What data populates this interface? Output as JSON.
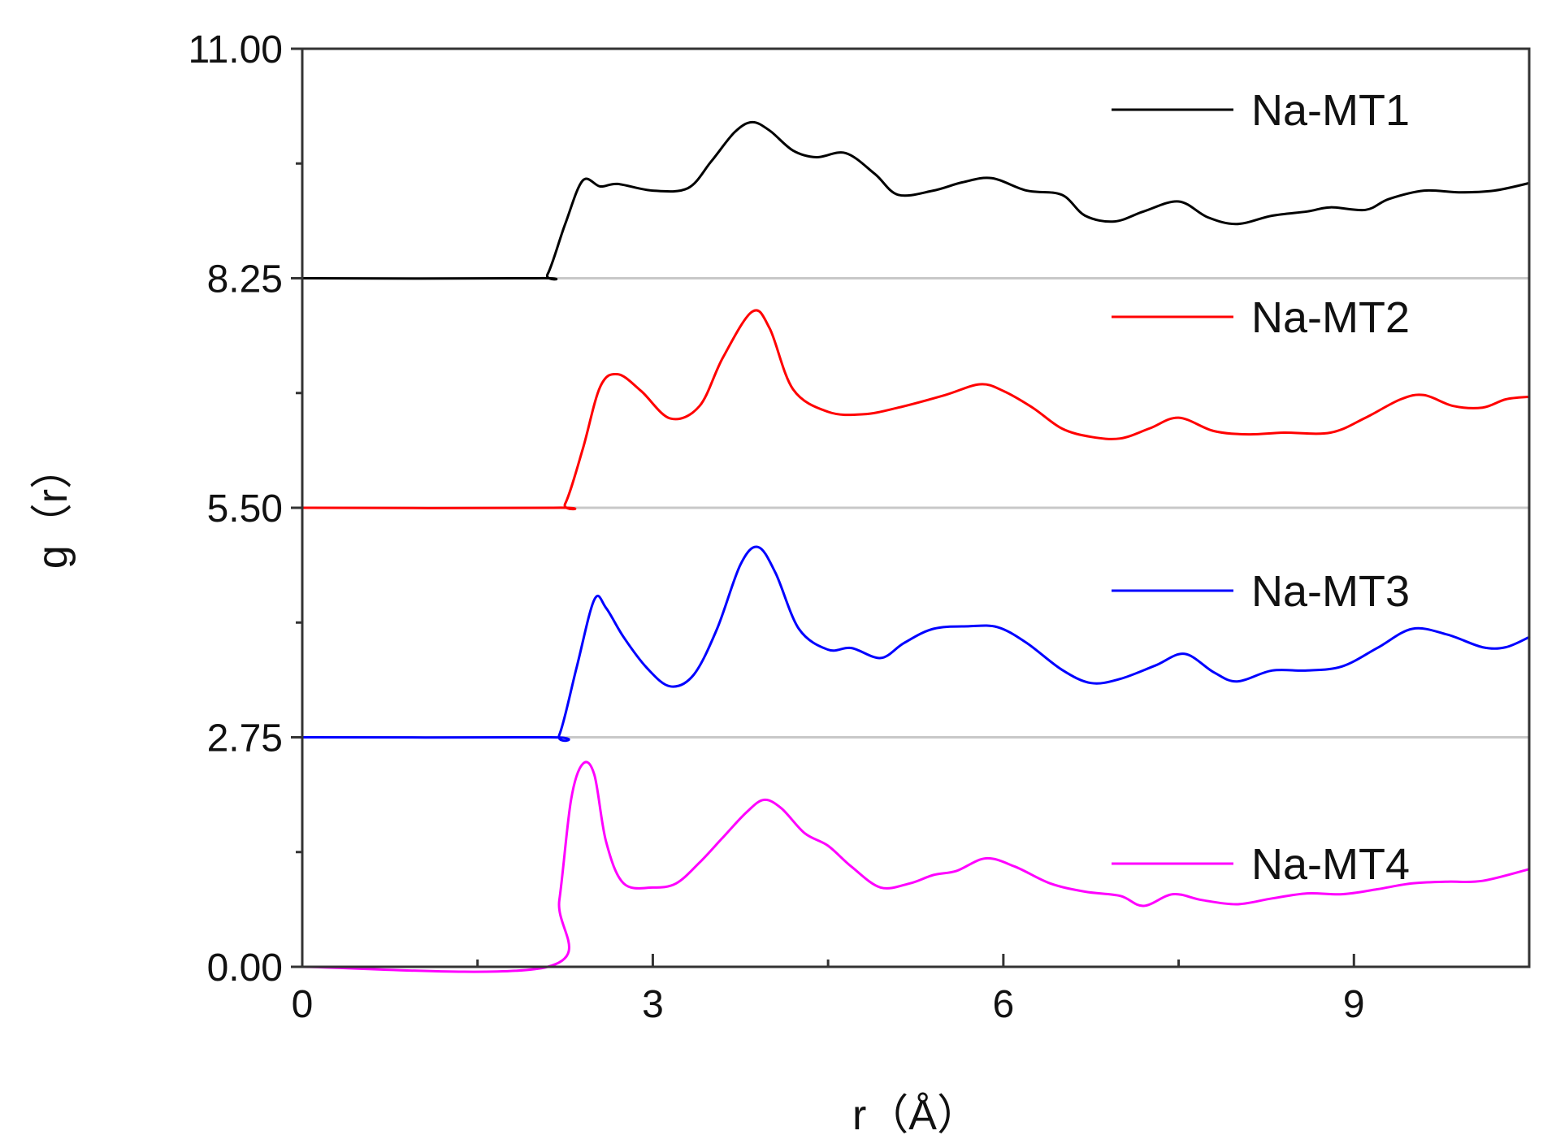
{
  "chart_data": {
    "type": "line",
    "title": "",
    "xlabel": "r（Å）",
    "ylabel": "g（r）",
    "xlim": [
      0,
      10.5
    ],
    "ylim": [
      0,
      11
    ],
    "x_ticks": [
      "0",
      "3",
      "6",
      "9"
    ],
    "x_tick_values": [
      0,
      3,
      6,
      9
    ],
    "y_ticks": [
      "0.00",
      "2.75",
      "5.50",
      "8.25",
      "11.00"
    ],
    "y_tick_values": [
      0,
      2.75,
      5.5,
      8.25,
      11
    ],
    "grid": "horizontal baselines at 2.75, 5.50, 8.25",
    "legend_position": "right",
    "series": [
      {
        "name": "Na-MT1",
        "color": "#000000",
        "x": [
          0,
          2.0,
          2.1,
          2.25,
          2.4,
          2.55,
          2.7,
          3.0,
          3.3,
          3.5,
          3.7,
          3.85,
          4.0,
          4.2,
          4.4,
          4.65,
          4.9,
          5.1,
          5.4,
          5.65,
          5.9,
          6.2,
          6.5,
          6.7,
          6.95,
          7.2,
          7.5,
          7.75,
          8.0,
          8.3,
          8.6,
          8.8,
          9.1,
          9.3,
          9.6,
          9.9,
          10.2,
          10.5
        ],
        "y": [
          8.25,
          8.25,
          8.3,
          8.9,
          9.42,
          9.35,
          9.38,
          9.3,
          9.33,
          9.65,
          10.0,
          10.12,
          10.02,
          9.78,
          9.7,
          9.75,
          9.5,
          9.25,
          9.3,
          9.4,
          9.45,
          9.3,
          9.25,
          9.0,
          8.93,
          9.05,
          9.17,
          8.98,
          8.9,
          9.0,
          9.05,
          9.1,
          9.07,
          9.2,
          9.3,
          9.28,
          9.3,
          9.39
        ]
      },
      {
        "name": "Na-MT2",
        "color": "#ff0000",
        "x": [
          0,
          2.15,
          2.25,
          2.4,
          2.55,
          2.7,
          2.9,
          3.15,
          3.4,
          3.6,
          3.85,
          4.0,
          4.2,
          4.5,
          4.8,
          5.1,
          5.5,
          5.8,
          6.0,
          6.25,
          6.5,
          6.75,
          7.0,
          7.25,
          7.5,
          7.8,
          8.1,
          8.4,
          8.8,
          9.1,
          9.4,
          9.6,
          9.85,
          10.1,
          10.3,
          10.5
        ],
        "y": [
          5.5,
          5.5,
          5.55,
          6.2,
          6.95,
          7.1,
          6.9,
          6.57,
          6.72,
          7.3,
          7.85,
          7.65,
          6.92,
          6.65,
          6.62,
          6.7,
          6.85,
          6.98,
          6.9,
          6.7,
          6.45,
          6.35,
          6.33,
          6.45,
          6.58,
          6.42,
          6.38,
          6.4,
          6.4,
          6.58,
          6.8,
          6.85,
          6.72,
          6.7,
          6.8,
          6.83
        ]
      },
      {
        "name": "Na-MT3",
        "color": "#0000ff",
        "x": [
          0,
          2.1,
          2.2,
          2.35,
          2.5,
          2.6,
          2.75,
          2.95,
          3.15,
          3.35,
          3.55,
          3.75,
          3.9,
          4.05,
          4.25,
          4.5,
          4.7,
          4.95,
          5.15,
          5.4,
          5.7,
          5.95,
          6.2,
          6.5,
          6.75,
          7.0,
          7.3,
          7.55,
          7.8,
          8.0,
          8.3,
          8.6,
          8.9,
          9.2,
          9.5,
          9.8,
          10.1,
          10.3,
          10.5
        ],
        "y": [
          2.75,
          2.75,
          2.78,
          3.6,
          4.4,
          4.3,
          3.95,
          3.58,
          3.36,
          3.5,
          4.05,
          4.82,
          5.03,
          4.72,
          4.05,
          3.8,
          3.82,
          3.7,
          3.88,
          4.05,
          4.08,
          4.07,
          3.88,
          3.56,
          3.4,
          3.45,
          3.61,
          3.75,
          3.53,
          3.42,
          3.55,
          3.55,
          3.6,
          3.82,
          4.05,
          3.98,
          3.83,
          3.83,
          3.95
        ]
      },
      {
        "name": "Na-MT4",
        "color": "#ff00ff",
        "x": [
          0,
          2.1,
          2.2,
          2.3,
          2.4,
          2.5,
          2.6,
          2.75,
          3.0,
          3.2,
          3.4,
          3.6,
          3.8,
          3.95,
          4.1,
          4.3,
          4.5,
          4.7,
          4.95,
          5.2,
          5.4,
          5.6,
          5.85,
          6.1,
          6.4,
          6.7,
          7.0,
          7.2,
          7.45,
          7.7,
          8.0,
          8.3,
          8.6,
          8.9,
          9.2,
          9.5,
          9.8,
          10.1,
          10.5
        ],
        "y": [
          0,
          0,
          0.8,
          2.0,
          2.43,
          2.3,
          1.5,
          1.0,
          0.95,
          1.0,
          1.25,
          1.55,
          1.85,
          2.0,
          1.9,
          1.6,
          1.45,
          1.2,
          0.95,
          1.0,
          1.1,
          1.15,
          1.3,
          1.2,
          1.0,
          0.9,
          0.85,
          0.73,
          0.87,
          0.8,
          0.75,
          0.82,
          0.88,
          0.87,
          0.93,
          1.0,
          1.02,
          1.03,
          1.17
        ]
      }
    ]
  }
}
